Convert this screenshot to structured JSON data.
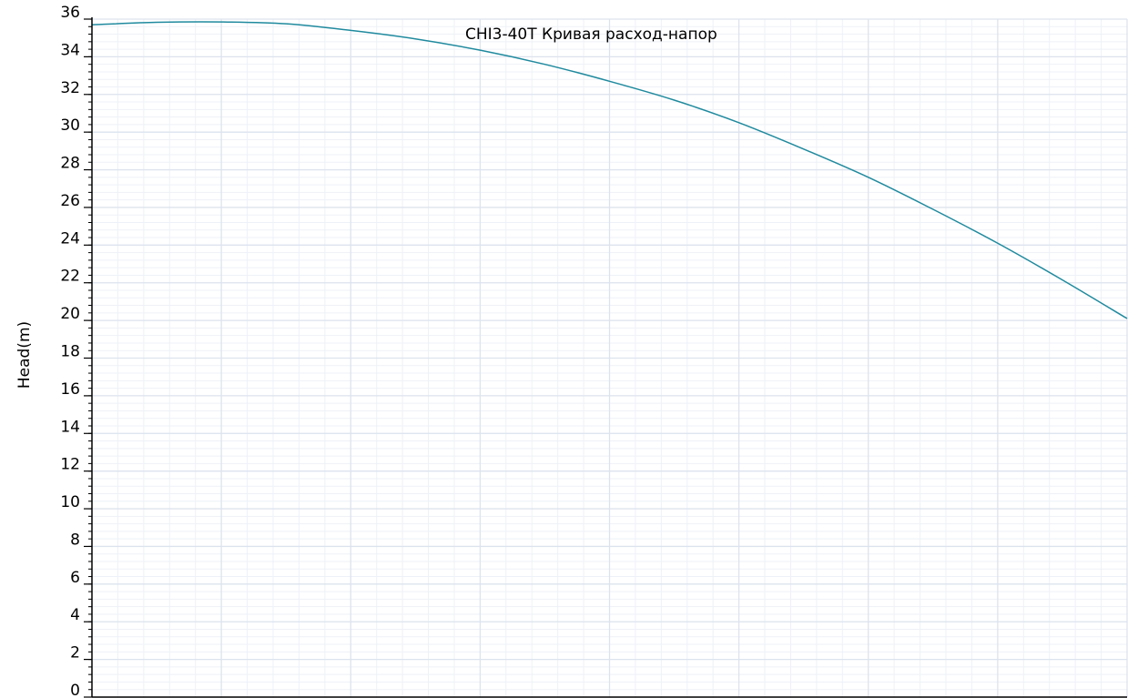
{
  "chart_data": {
    "type": "line",
    "title": "CHI3-40T Кривая расход-напор",
    "xlabel": "",
    "ylabel": "Head(m)",
    "xlim": [
      0,
      4
    ],
    "ylim": [
      0,
      36
    ],
    "yticks": [
      0,
      2,
      4,
      6,
      8,
      10,
      12,
      14,
      16,
      18,
      20,
      22,
      24,
      26,
      28,
      30,
      32,
      34,
      36
    ],
    "x_major_step": 0.5,
    "x_minor_step": 0.1,
    "y_minor_step": 0.4,
    "grid": true,
    "series": [
      {
        "color": "#1f8a9e",
        "x": [
          0,
          0.25,
          0.5,
          0.75,
          1.0,
          1.25,
          1.5,
          1.75,
          2.0,
          2.25,
          2.5,
          2.75,
          3.0,
          3.25,
          3.5,
          3.75,
          4.0
        ],
        "y": [
          35.7,
          35.83,
          35.85,
          35.75,
          35.4,
          34.95,
          34.35,
          33.6,
          32.7,
          31.7,
          30.5,
          29.1,
          27.6,
          25.9,
          24.1,
          22.15,
          20.1
        ]
      }
    ]
  },
  "colors": {
    "major_grid": "#dde3ee",
    "minor_grid": "#eef1f7",
    "axis": "#000000",
    "line": "#1f8a9e"
  }
}
